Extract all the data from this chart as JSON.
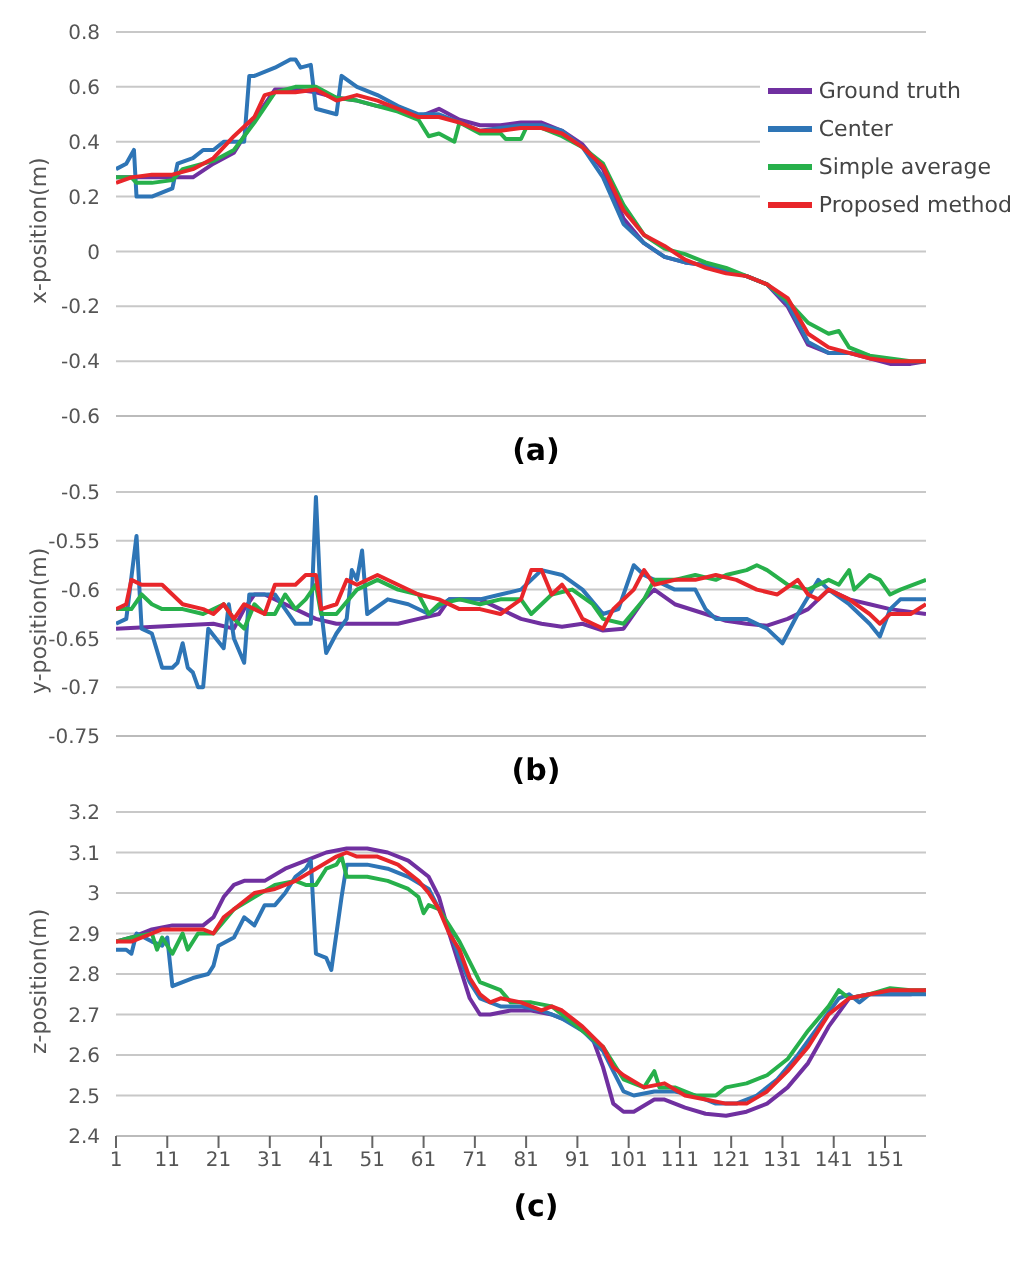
{
  "chart_data": [
    {
      "type": "line",
      "ylabel": "x-position(m)",
      "annotations": [
        "(a)"
      ],
      "xlim": [
        1,
        159
      ],
      "ylim": [
        -0.6,
        0.8
      ],
      "yticks": [
        -0.6,
        -0.4,
        -0.2,
        0,
        0.2,
        0.4,
        0.6,
        0.8
      ],
      "tick_labels": "y",
      "grid": "y",
      "legend": "top right",
      "series": [
        {
          "name": "Ground truth",
          "color": "#7030a0",
          "x": [
            1,
            4,
            8,
            12,
            16,
            20,
            24,
            28,
            32,
            36,
            40,
            44,
            48,
            52,
            56,
            60,
            64,
            68,
            72,
            76,
            80,
            84,
            88,
            92,
            96,
            100,
            104,
            108,
            112,
            116,
            120,
            124,
            128,
            132,
            136,
            140,
            144,
            148,
            152,
            156,
            159
          ],
          "values": [
            0.27,
            0.27,
            0.27,
            0.27,
            0.27,
            0.32,
            0.36,
            0.48,
            0.59,
            0.59,
            0.58,
            0.56,
            0.55,
            0.53,
            0.52,
            0.49,
            0.52,
            0.48,
            0.46,
            0.46,
            0.47,
            0.47,
            0.44,
            0.39,
            0.3,
            0.12,
            0.03,
            -0.02,
            -0.04,
            -0.05,
            -0.07,
            -0.09,
            -0.12,
            -0.2,
            -0.34,
            -0.37,
            -0.37,
            -0.39,
            -0.41,
            -0.41,
            -0.4
          ]
        },
        {
          "name": "Center",
          "color": "#2e75b6",
          "x": [
            1,
            3,
            4.5,
            5,
            8,
            12,
            13,
            16,
            18,
            20,
            22,
            26,
            27,
            28,
            32,
            35,
            36,
            37,
            39,
            40,
            44,
            45,
            48,
            52,
            56,
            60,
            64,
            68,
            72,
            76,
            80,
            84,
            88,
            92,
            96,
            100,
            104,
            108,
            112,
            116,
            120,
            124,
            128,
            132,
            136,
            140,
            144,
            148
          ],
          "values": [
            0.3,
            0.32,
            0.37,
            0.2,
            0.2,
            0.23,
            0.32,
            0.34,
            0.37,
            0.37,
            0.4,
            0.4,
            0.64,
            0.64,
            0.67,
            0.7,
            0.7,
            0.67,
            0.68,
            0.52,
            0.5,
            0.64,
            0.6,
            0.57,
            0.53,
            0.5,
            0.5,
            0.47,
            0.44,
            0.45,
            0.46,
            0.46,
            0.44,
            0.38,
            0.27,
            0.1,
            0.03,
            -0.02,
            -0.04,
            -0.05,
            -0.07,
            -0.09,
            -0.12,
            -0.19,
            -0.33,
            -0.37,
            -0.37,
            -0.38
          ]
        },
        {
          "name": "Simple average",
          "color": "#27b04b",
          "x": [
            1,
            4,
            5,
            8,
            12,
            14,
            16,
            20,
            24,
            28,
            32,
            36,
            40,
            44,
            48,
            52,
            56,
            60,
            62,
            64,
            67,
            68,
            72,
            76,
            77,
            80,
            81,
            84,
            88,
            92,
            96,
            100,
            104,
            108,
            112,
            116,
            120,
            124,
            128,
            132,
            136,
            140,
            142,
            144,
            148,
            152,
            156,
            159
          ],
          "values": [
            0.27,
            0.27,
            0.25,
            0.25,
            0.26,
            0.3,
            0.31,
            0.33,
            0.37,
            0.47,
            0.58,
            0.6,
            0.6,
            0.56,
            0.55,
            0.53,
            0.51,
            0.48,
            0.42,
            0.43,
            0.4,
            0.47,
            0.43,
            0.43,
            0.41,
            0.41,
            0.45,
            0.45,
            0.42,
            0.38,
            0.32,
            0.17,
            0.06,
            0.01,
            -0.01,
            -0.04,
            -0.06,
            -0.09,
            -0.12,
            -0.18,
            -0.26,
            -0.3,
            -0.29,
            -0.35,
            -0.38,
            -0.39,
            -0.4,
            -0.4
          ]
        },
        {
          "name": "Proposed method",
          "color": "#e8262a",
          "x": [
            1,
            4,
            8,
            12,
            16,
            20,
            24,
            28,
            30,
            32,
            36,
            40,
            44,
            48,
            52,
            56,
            60,
            64,
            68,
            72,
            76,
            80,
            84,
            88,
            92,
            96,
            100,
            104,
            108,
            112,
            116,
            120,
            124,
            128,
            132,
            136,
            140,
            144,
            148,
            152,
            156,
            159
          ],
          "values": [
            0.25,
            0.27,
            0.28,
            0.28,
            0.3,
            0.34,
            0.42,
            0.49,
            0.57,
            0.58,
            0.58,
            0.59,
            0.55,
            0.57,
            0.55,
            0.52,
            0.49,
            0.49,
            0.47,
            0.44,
            0.44,
            0.45,
            0.45,
            0.43,
            0.38,
            0.31,
            0.15,
            0.06,
            0.02,
            -0.03,
            -0.06,
            -0.08,
            -0.09,
            -0.12,
            -0.17,
            -0.3,
            -0.35,
            -0.37,
            -0.39,
            -0.4,
            -0.4,
            -0.4
          ]
        }
      ]
    },
    {
      "type": "line",
      "ylabel": "y-position(m)",
      "annotations": [
        "(b)"
      ],
      "xlim": [
        1,
        159
      ],
      "ylim": [
        -0.75,
        -0.5
      ],
      "yticks": [
        -0.75,
        -0.7,
        -0.65,
        -0.6,
        -0.55,
        -0.5
      ],
      "tick_labels": "y",
      "grid": "y",
      "series": [
        {
          "color": "#7030a0",
          "x": [
            1,
            20,
            24,
            26,
            28,
            30,
            40,
            44,
            56,
            60,
            64,
            66,
            72,
            76,
            80,
            84,
            88,
            92,
            96,
            100,
            104,
            106,
            110,
            116,
            120,
            124,
            128,
            132,
            136,
            140,
            144,
            148,
            152,
            159
          ],
          "values": [
            -0.64,
            -0.635,
            -0.64,
            -0.62,
            -0.605,
            -0.605,
            -0.63,
            -0.635,
            -0.635,
            -0.63,
            -0.625,
            -0.61,
            -0.61,
            -0.62,
            -0.63,
            -0.635,
            -0.638,
            -0.635,
            -0.642,
            -0.64,
            -0.61,
            -0.6,
            -0.615,
            -0.625,
            -0.632,
            -0.635,
            -0.637,
            -0.63,
            -0.62,
            -0.6,
            -0.61,
            -0.615,
            -0.62,
            -0.625
          ]
        },
        {
          "color": "#2e75b6",
          "x": [
            1,
            3,
            5,
            6,
            8,
            10,
            12,
            13,
            14,
            15,
            16,
            17,
            18,
            19,
            22,
            23,
            24,
            26,
            27,
            30,
            32,
            34,
            36,
            39,
            40,
            41,
            42,
            44,
            46,
            47,
            48,
            49,
            50,
            54,
            58,
            62,
            66,
            72,
            76,
            80,
            84,
            88,
            92,
            96,
            99,
            102,
            104,
            106,
            110,
            114,
            116,
            118,
            124,
            128,
            131,
            134,
            138,
            140,
            144,
            148,
            150,
            152,
            154,
            159
          ],
          "values": [
            -0.635,
            -0.63,
            -0.545,
            -0.64,
            -0.645,
            -0.68,
            -0.68,
            -0.675,
            -0.655,
            -0.68,
            -0.685,
            -0.7,
            -0.7,
            -0.64,
            -0.66,
            -0.615,
            -0.65,
            -0.675,
            -0.605,
            -0.605,
            -0.605,
            -0.62,
            -0.635,
            -0.635,
            -0.505,
            -0.62,
            -0.665,
            -0.645,
            -0.63,
            -0.58,
            -0.59,
            -0.56,
            -0.625,
            -0.61,
            -0.615,
            -0.625,
            -0.61,
            -0.61,
            -0.605,
            -0.6,
            -0.58,
            -0.585,
            -0.6,
            -0.625,
            -0.62,
            -0.575,
            -0.585,
            -0.59,
            -0.6,
            -0.6,
            -0.62,
            -0.63,
            -0.63,
            -0.64,
            -0.655,
            -0.625,
            -0.59,
            -0.6,
            -0.615,
            -0.635,
            -0.648,
            -0.62,
            -0.61,
            -0.61
          ]
        },
        {
          "color": "#27b04b",
          "x": [
            1,
            4,
            6,
            8,
            10,
            14,
            18,
            22,
            24,
            26,
            28,
            30,
            32,
            34,
            36,
            38,
            40,
            41,
            44,
            48,
            52,
            56,
            60,
            62,
            64,
            68,
            72,
            76,
            80,
            82,
            86,
            90,
            94,
            96,
            100,
            104,
            106,
            110,
            114,
            118,
            120,
            124,
            126,
            128,
            132,
            136,
            140,
            142,
            144,
            145,
            148,
            150,
            152,
            154,
            159
          ],
          "values": [
            -0.62,
            -0.62,
            -0.605,
            -0.615,
            -0.62,
            -0.62,
            -0.625,
            -0.615,
            -0.63,
            -0.64,
            -0.615,
            -0.625,
            -0.625,
            -0.605,
            -0.62,
            -0.61,
            -0.595,
            -0.625,
            -0.625,
            -0.6,
            -0.59,
            -0.6,
            -0.605,
            -0.625,
            -0.615,
            -0.61,
            -0.615,
            -0.61,
            -0.61,
            -0.625,
            -0.605,
            -0.6,
            -0.615,
            -0.63,
            -0.635,
            -0.61,
            -0.59,
            -0.59,
            -0.585,
            -0.59,
            -0.585,
            -0.58,
            -0.575,
            -0.58,
            -0.595,
            -0.6,
            -0.59,
            -0.595,
            -0.58,
            -0.6,
            -0.585,
            -0.59,
            -0.605,
            -0.6,
            -0.59
          ]
        },
        {
          "color": "#e8262a",
          "x": [
            1,
            3,
            4,
            6,
            10,
            12,
            14,
            18,
            20,
            22,
            24,
            26,
            28,
            30,
            32,
            36,
            38,
            40,
            41,
            44,
            46,
            48,
            52,
            56,
            60,
            64,
            68,
            72,
            76,
            80,
            82,
            84,
            86,
            88,
            90,
            92,
            94,
            96,
            98,
            102,
            104,
            106,
            110,
            114,
            118,
            122,
            126,
            130,
            134,
            136,
            138,
            140,
            144,
            148,
            150,
            152,
            156,
            159
          ],
          "values": [
            -0.62,
            -0.615,
            -0.59,
            -0.595,
            -0.595,
            -0.605,
            -0.615,
            -0.62,
            -0.625,
            -0.615,
            -0.63,
            -0.615,
            -0.62,
            -0.625,
            -0.595,
            -0.595,
            -0.585,
            -0.585,
            -0.62,
            -0.615,
            -0.59,
            -0.595,
            -0.585,
            -0.595,
            -0.605,
            -0.61,
            -0.62,
            -0.62,
            -0.625,
            -0.61,
            -0.58,
            -0.58,
            -0.605,
            -0.595,
            -0.61,
            -0.63,
            -0.635,
            -0.64,
            -0.62,
            -0.6,
            -0.58,
            -0.595,
            -0.59,
            -0.59,
            -0.585,
            -0.59,
            -0.6,
            -0.605,
            -0.59,
            -0.605,
            -0.61,
            -0.6,
            -0.61,
            -0.625,
            -0.635,
            -0.625,
            -0.625,
            -0.615
          ]
        }
      ]
    },
    {
      "type": "line",
      "ylabel": "z-position(m)",
      "annotations": [
        "(c)"
      ],
      "xlim": [
        1,
        159
      ],
      "xticks": [
        1,
        11,
        21,
        31,
        41,
        51,
        61,
        71,
        81,
        91,
        101,
        111,
        121,
        131,
        141,
        151
      ],
      "ylim": [
        2.4,
        3.2
      ],
      "yticks": [
        2.4,
        2.5,
        2.6,
        2.7,
        2.8,
        2.9,
        3,
        3.1,
        3.2
      ],
      "grid": "y",
      "series": [
        {
          "color": "#7030a0",
          "x": [
            1,
            4,
            8,
            12,
            16,
            18,
            20,
            22,
            24,
            26,
            30,
            34,
            38,
            42,
            46,
            50,
            54,
            58,
            62,
            64,
            66,
            68,
            70,
            72,
            74,
            78,
            82,
            86,
            90,
            94,
            96,
            98,
            100,
            102,
            106,
            108,
            112,
            116,
            120,
            124,
            128,
            132,
            136,
            140,
            144,
            148,
            152,
            156,
            159
          ],
          "values": [
            2.88,
            2.89,
            2.91,
            2.92,
            2.92,
            2.92,
            2.94,
            2.99,
            3.02,
            3.03,
            3.03,
            3.06,
            3.08,
            3.1,
            3.11,
            3.11,
            3.1,
            3.08,
            3.04,
            2.99,
            2.9,
            2.82,
            2.74,
            2.7,
            2.7,
            2.71,
            2.71,
            2.7,
            2.68,
            2.64,
            2.57,
            2.48,
            2.46,
            2.46,
            2.49,
            2.49,
            2.47,
            2.455,
            2.45,
            2.46,
            2.48,
            2.52,
            2.58,
            2.67,
            2.74,
            2.75,
            2.75,
            2.75,
            2.76
          ]
        },
        {
          "color": "#2e75b6",
          "x": [
            1,
            3,
            4,
            5,
            8,
            10,
            11,
            12,
            14,
            16,
            19,
            20,
            21,
            24,
            26,
            28,
            30,
            32,
            34,
            36,
            38,
            39,
            40,
            42,
            43,
            45,
            46,
            50,
            54,
            58,
            62,
            64,
            66,
            68,
            70,
            72,
            76,
            80,
            84,
            88,
            92,
            96,
            98,
            100,
            102,
            106,
            110,
            114,
            118,
            122,
            126,
            130,
            134,
            138,
            142,
            144,
            146,
            148,
            152,
            156,
            159
          ],
          "values": [
            2.86,
            2.86,
            2.85,
            2.9,
            2.88,
            2.87,
            2.89,
            2.77,
            2.78,
            2.79,
            2.8,
            2.82,
            2.87,
            2.89,
            2.94,
            2.92,
            2.97,
            2.97,
            3,
            3.04,
            3.06,
            3.08,
            2.85,
            2.84,
            2.81,
            2.99,
            3.07,
            3.07,
            3.06,
            3.04,
            3.01,
            2.96,
            2.91,
            2.84,
            2.78,
            2.74,
            2.72,
            2.72,
            2.71,
            2.69,
            2.66,
            2.61,
            2.56,
            2.51,
            2.5,
            2.51,
            2.51,
            2.5,
            2.48,
            2.48,
            2.5,
            2.54,
            2.6,
            2.67,
            2.74,
            2.75,
            2.73,
            2.75,
            2.75,
            2.75,
            2.75
          ]
        },
        {
          "color": "#27b04b",
          "x": [
            1,
            4,
            8,
            9,
            10,
            12,
            14,
            15,
            17,
            20,
            22,
            24,
            28,
            32,
            36,
            38,
            40,
            42,
            44,
            45,
            46,
            50,
            54,
            58,
            60,
            61,
            62,
            64,
            66,
            68,
            70,
            72,
            76,
            78,
            82,
            86,
            88,
            92,
            96,
            100,
            104,
            106,
            107,
            110,
            114,
            118,
            120,
            124,
            128,
            132,
            136,
            140,
            142,
            144,
            148,
            152,
            156,
            159
          ],
          "values": [
            2.88,
            2.89,
            2.9,
            2.86,
            2.89,
            2.85,
            2.9,
            2.86,
            2.9,
            2.9,
            2.93,
            2.96,
            2.99,
            3.02,
            3.03,
            3.02,
            3.02,
            3.06,
            3.07,
            3.09,
            3.04,
            3.04,
            3.03,
            3.01,
            2.99,
            2.95,
            2.97,
            2.96,
            2.92,
            2.88,
            2.83,
            2.78,
            2.76,
            2.73,
            2.73,
            2.72,
            2.7,
            2.66,
            2.62,
            2.54,
            2.52,
            2.56,
            2.52,
            2.52,
            2.5,
            2.5,
            2.52,
            2.53,
            2.55,
            2.59,
            2.66,
            2.72,
            2.76,
            2.74,
            2.75,
            2.765,
            2.76,
            2.76
          ]
        },
        {
          "color": "#e8262a",
          "x": [
            1,
            4,
            8,
            10,
            14,
            18,
            20,
            22,
            24,
            28,
            32,
            36,
            40,
            44,
            46,
            48,
            52,
            56,
            60,
            62,
            64,
            66,
            68,
            70,
            72,
            74,
            76,
            80,
            84,
            86,
            88,
            92,
            96,
            98,
            100,
            104,
            108,
            112,
            116,
            120,
            124,
            128,
            132,
            136,
            140,
            144,
            148,
            152,
            156,
            159
          ],
          "values": [
            2.88,
            2.88,
            2.9,
            2.91,
            2.91,
            2.91,
            2.9,
            2.94,
            2.96,
            3,
            3.01,
            3.03,
            3.06,
            3.09,
            3.1,
            3.09,
            3.09,
            3.07,
            3.03,
            3,
            2.96,
            2.9,
            2.86,
            2.79,
            2.75,
            2.73,
            2.74,
            2.73,
            2.71,
            2.72,
            2.71,
            2.67,
            2.62,
            2.57,
            2.55,
            2.52,
            2.53,
            2.5,
            2.49,
            2.48,
            2.48,
            2.51,
            2.56,
            2.62,
            2.7,
            2.74,
            2.75,
            2.76,
            2.76,
            2.76
          ]
        }
      ]
    }
  ]
}
